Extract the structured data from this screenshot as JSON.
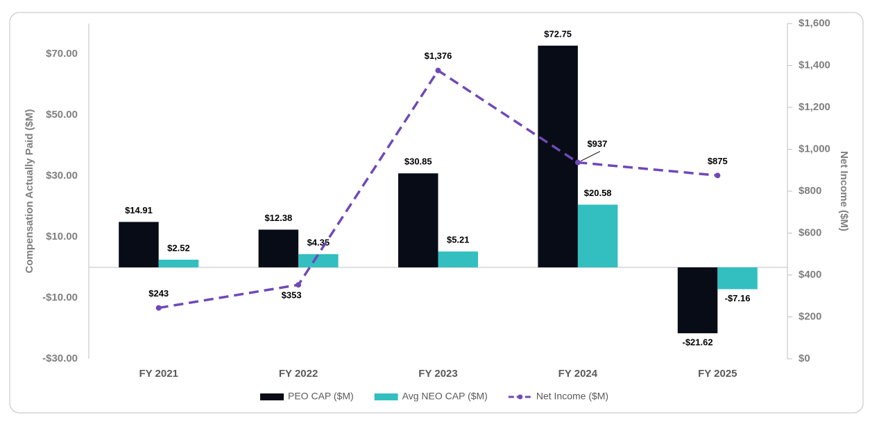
{
  "chart_data": {
    "type": "bar",
    "ylabel": "Compensation Actually Paid ($M)",
    "y2label": "Net Income ($M)",
    "categories": [
      "FY 2021",
      "FY 2022",
      "FY 2023",
      "FY 2024",
      "FY 2025"
    ],
    "series": [
      {
        "name": "PEO CAP ($M)",
        "color": "#080c16",
        "values": [
          14.91,
          12.38,
          30.85,
          72.75,
          -21.62
        ],
        "value_labels": [
          "$14.91",
          "$12.38",
          "$30.85",
          "$72.75",
          "-$21.62"
        ]
      },
      {
        "name": "Avg NEO CAP ($M)",
        "color": "#33bfbf",
        "values": [
          2.52,
          4.35,
          5.21,
          20.58,
          -7.16
        ],
        "value_labels": [
          "$2.52",
          "$4.35",
          "$5.21",
          "$20.58",
          "-$7.16"
        ]
      },
      {
        "name": "Net Income ($M)",
        "color": "#6f48b8",
        "axis": "y2",
        "line_style": "dashed",
        "values": [
          243,
          353,
          1376,
          937,
          875
        ],
        "value_labels": [
          "$243",
          "$353",
          "$1,376",
          "$937",
          "$875"
        ]
      }
    ],
    "ylim": [
      -30,
      80
    ],
    "yticks": [
      {
        "value": -30,
        "label": "-$30.00"
      },
      {
        "value": -10,
        "label": "-$10.00"
      },
      {
        "value": 10,
        "label": "$10.00"
      },
      {
        "value": 30,
        "label": "$30.00"
      },
      {
        "value": 50,
        "label": "$50.00"
      },
      {
        "value": 70,
        "label": "$70.00"
      }
    ],
    "y2lim": [
      0,
      1600
    ],
    "y2ticks": [
      {
        "value": 0,
        "label": "$0"
      },
      {
        "value": 200,
        "label": "$200"
      },
      {
        "value": 400,
        "label": "$400"
      },
      {
        "value": 600,
        "label": "$600"
      },
      {
        "value": 800,
        "label": "$800"
      },
      {
        "value": 1000,
        "label": "$1,000"
      },
      {
        "value": 1200,
        "label": "$1,200"
      },
      {
        "value": 1400,
        "label": "$1,400"
      },
      {
        "value": 1600,
        "label": "$1,600"
      }
    ],
    "legend": "bottom"
  }
}
